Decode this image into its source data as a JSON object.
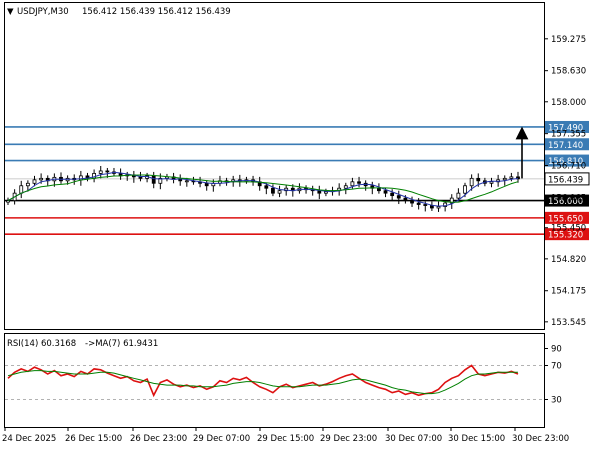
{
  "header": {
    "symbol_timeframe": "USDJPY,M30",
    "ohlc": "156.412 156.439 156.412 156.439"
  },
  "indicator_header": {
    "rsi_label": "RSI(14) 60.3168",
    "ma_label": "->MA(7) 61.9431"
  },
  "colors": {
    "background": "#ffffff",
    "axis": "#000000",
    "price_line": "#000000",
    "ma_fast": "#2233aa",
    "ma_slow": "#008000",
    "resistance": "#3a7bb4",
    "support": "#dd1111",
    "pivot": "#000000",
    "rsi": "#dd1111",
    "rsi_ma": "#008000",
    "rsi_level": "#999999"
  },
  "chart_data": [
    {
      "type": "candlestick",
      "symbol": "USDJPY",
      "timeframe": "M30",
      "ylim": [
        153.4,
        160.0
      ],
      "y_ticks": [
        "159.275",
        "158.630",
        "158.000",
        "157.355",
        "156.710",
        "156.065",
        "155.450",
        "154.820",
        "154.175",
        "153.545"
      ],
      "x_ticks": [
        "24 Dec 2025",
        "26 Dec 15:00",
        "26 Dec 23:00",
        "29 Dec 07:00",
        "29 Dec 15:00",
        "29 Dec 23:00",
        "30 Dec 07:00",
        "30 Dec 15:00",
        "30 Dec 23:00"
      ],
      "horizontal_levels": [
        {
          "value": 157.49,
          "label": "157.490",
          "role": "resistance"
        },
        {
          "value": 157.14,
          "label": "157.140",
          "role": "resistance"
        },
        {
          "value": 156.81,
          "label": "156.810",
          "role": "resistance"
        },
        {
          "value": 156.0,
          "label": "156.000",
          "role": "pivot"
        },
        {
          "value": 155.65,
          "label": "155.650",
          "role": "support"
        },
        {
          "value": 155.32,
          "label": "155.320",
          "role": "support"
        }
      ],
      "current_price": {
        "value": 156.439,
        "label": "156.439"
      },
      "arrow": {
        "from": 156.45,
        "to": 157.45,
        "direction": "up"
      },
      "close_path": [
        156.0,
        156.15,
        156.3,
        156.35,
        156.42,
        156.45,
        156.4,
        156.47,
        156.4,
        156.45,
        156.42,
        156.5,
        156.45,
        156.55,
        156.6,
        156.58,
        156.55,
        156.5,
        156.52,
        156.48,
        156.45,
        156.5,
        156.35,
        156.45,
        156.48,
        156.43,
        156.4,
        156.4,
        156.38,
        156.35,
        156.3,
        156.35,
        156.4,
        156.38,
        156.42,
        156.4,
        156.42,
        156.38,
        156.3,
        156.25,
        156.15,
        156.2,
        156.25,
        156.2,
        156.25,
        156.22,
        156.2,
        156.15,
        156.18,
        156.2,
        156.25,
        156.3,
        156.38,
        156.35,
        156.3,
        156.25,
        156.2,
        156.15,
        156.1,
        156.05,
        156.0,
        155.95,
        155.92,
        155.9,
        155.85,
        155.88,
        155.95,
        156.05,
        156.15,
        156.3,
        156.45,
        156.4,
        156.35,
        156.38,
        156.42,
        156.45,
        156.48,
        156.44
      ]
    },
    {
      "type": "line",
      "indicator": "RSI",
      "period": 14,
      "ma_period": 7,
      "ylim": [
        0,
        100
      ],
      "y_ticks": [
        "90",
        "70",
        "30"
      ],
      "levels": [
        70,
        30
      ],
      "rsi_value": 60.3168,
      "ma_value": 61.9431,
      "rsi_path": [
        55,
        62,
        66,
        63,
        68,
        65,
        60,
        64,
        58,
        60,
        57,
        63,
        60,
        66,
        65,
        61,
        58,
        55,
        57,
        52,
        50,
        54,
        35,
        50,
        53,
        48,
        45,
        47,
        44,
        46,
        42,
        45,
        52,
        50,
        55,
        53,
        56,
        50,
        45,
        42,
        38,
        45,
        48,
        44,
        46,
        48,
        50,
        46,
        48,
        51,
        55,
        58,
        60,
        55,
        50,
        47,
        44,
        42,
        38,
        40,
        36,
        38,
        35,
        37,
        38,
        42,
        50,
        55,
        58,
        65,
        70,
        60,
        58,
        60,
        62,
        61,
        63,
        60
      ],
      "ma_path": [
        58,
        60,
        62,
        63,
        64,
        64,
        63,
        63,
        62,
        61,
        60,
        60,
        60,
        61,
        62,
        62,
        61,
        59,
        57,
        55,
        53,
        51,
        49,
        48,
        47,
        47,
        47,
        46,
        46,
        45,
        45,
        45,
        46,
        47,
        49,
        50,
        51,
        51,
        50,
        48,
        46,
        45,
        45,
        45,
        45,
        46,
        47,
        47,
        47,
        48,
        49,
        51,
        53,
        54,
        53,
        51,
        49,
        47,
        44,
        42,
        41,
        39,
        38,
        37,
        37,
        38,
        41,
        45,
        49,
        54,
        58,
        60,
        60,
        61,
        62,
        62,
        62,
        62
      ]
    }
  ]
}
